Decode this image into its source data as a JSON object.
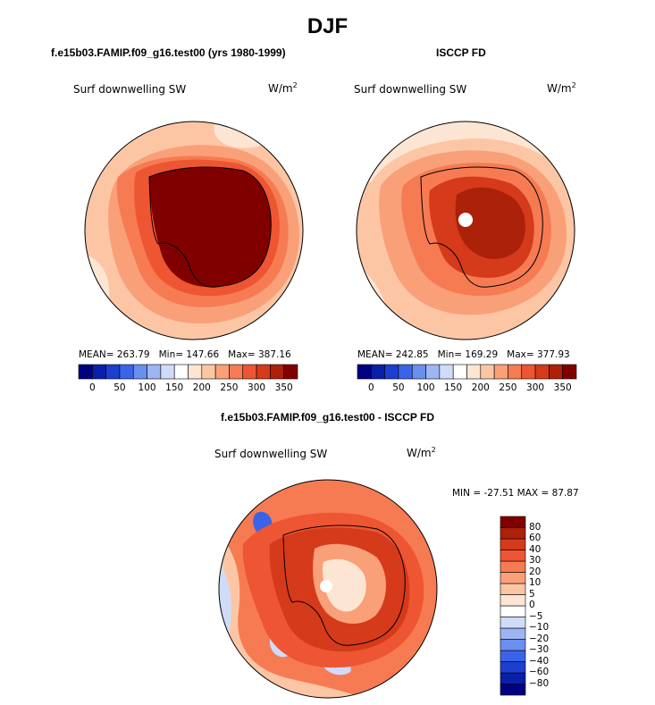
{
  "title": "DJF",
  "panels": [
    {
      "title": "f.e15b03.FAMIP.f09_g16.test00 (yrs 1980-1999)",
      "field": "Surf downwelling SW",
      "units_base": "W/m",
      "units_exp": "2",
      "mean_label": "MEAN= 263.79",
      "min_label": "Min= 147.66",
      "max_label": "Max= 387.16"
    },
    {
      "title": "ISCCP FD",
      "field": "Surf downwelling SW",
      "units_base": "W/m",
      "units_exp": "2",
      "mean_label": "MEAN= 242.85",
      "min_label": "Min= 169.29",
      "max_label": "Max= 377.93"
    },
    {
      "title": "f.e15b03.FAMIP.f09_g16.test00 - ISCCP FD",
      "field": "Surf downwelling SW",
      "units_base": "W/m",
      "units_exp": "2",
      "minmax_label": "MIN = -27.51 MAX =  87.87"
    }
  ],
  "abs_colorbar": {
    "colors": [
      "#000080",
      "#0a1fa8",
      "#1c3fd0",
      "#3a64e8",
      "#6b8fef",
      "#9db5f3",
      "#cfdcf8",
      "#ffffff",
      "#fde5d3",
      "#fcc6a5",
      "#f9a079",
      "#f67b53",
      "#ee5532",
      "#d53a1a",
      "#ab2109",
      "#800000"
    ],
    "tick_labels": [
      "0",
      "50",
      "100",
      "150",
      "200",
      "250",
      "300",
      "350"
    ]
  },
  "diff_colorbar": {
    "colors": [
      "#000080",
      "#0a1fa8",
      "#1c3fd0",
      "#3a64e8",
      "#6b8fef",
      "#9db5f3",
      "#cfdcf8",
      "#ffffff",
      "#fde5d3",
      "#fcc6a5",
      "#f9a079",
      "#f67b53",
      "#ee5532",
      "#d53a1a",
      "#ab2109",
      "#800000"
    ],
    "tick_labels": [
      "-80",
      "-60",
      "-40",
      "-30",
      "-20",
      "-10",
      "-5",
      "0",
      "5",
      "10",
      "20",
      "30",
      "40",
      "60",
      "80"
    ]
  }
}
